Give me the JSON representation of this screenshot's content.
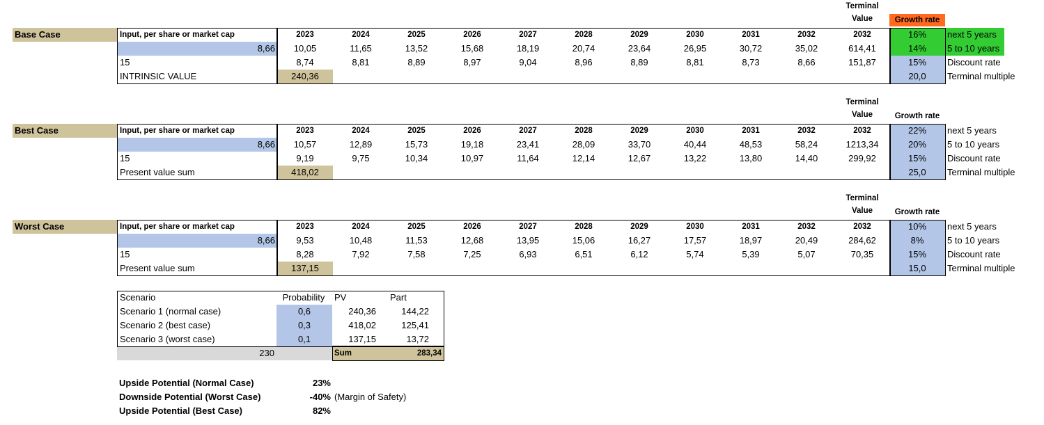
{
  "blocks": [
    {
      "label": "Base Case",
      "header_label": "Input, per share or market cap",
      "years": [
        "2023",
        "2024",
        "2025",
        "2026",
        "2027",
        "2028",
        "2029",
        "2030",
        "2031",
        "2032",
        "2032"
      ],
      "terminal_line1": "Terminal",
      "terminal_line2": "Value",
      "growth_header": "Growth rate",
      "input_value": "8,66",
      "fcf": [
        "10,05",
        "11,65",
        "13,52",
        "15,68",
        "18,19",
        "20,74",
        "23,64",
        "26,95",
        "30,72",
        "35,02",
        "614,41"
      ],
      "discount_label": "15",
      "pv": [
        "8,74",
        "8,81",
        "8,89",
        "8,97",
        "9,04",
        "8,96",
        "8,89",
        "8,81",
        "8,73",
        "8,66",
        "151,87"
      ],
      "sum_label": "INTRINSIC VALUE",
      "sum_value": "240,36",
      "params": [
        {
          "value": "16%",
          "label": "next 5 years"
        },
        {
          "value": "14%",
          "label": "5 to 10 years"
        },
        {
          "value": "15%",
          "label": "Discount rate"
        },
        {
          "value": "20,0",
          "label": "Terminal multiple"
        }
      ]
    },
    {
      "label": "Best Case",
      "header_label": "Input, per share or market cap",
      "years": [
        "2023",
        "2024",
        "2025",
        "2026",
        "2027",
        "2028",
        "2029",
        "2030",
        "2031",
        "2032",
        "2032"
      ],
      "terminal_line1": "Terminal",
      "terminal_line2": "Value",
      "growth_header": "Growth rate",
      "input_value": "8,66",
      "fcf": [
        "10,57",
        "12,89",
        "15,73",
        "19,18",
        "23,41",
        "28,09",
        "33,70",
        "40,44",
        "48,53",
        "58,24",
        "1213,34"
      ],
      "discount_label": "15",
      "pv": [
        "9,19",
        "9,75",
        "10,34",
        "10,97",
        "11,64",
        "12,14",
        "12,67",
        "13,22",
        "13,80",
        "14,40",
        "299,92"
      ],
      "sum_label": "Present value sum",
      "sum_value": "418,02",
      "params": [
        {
          "value": "22%",
          "label": "next 5 years"
        },
        {
          "value": "20%",
          "label": "5 to 10 years"
        },
        {
          "value": "15%",
          "label": "Discount rate"
        },
        {
          "value": "25,0",
          "label": "Terminal multiple"
        }
      ]
    },
    {
      "label": "Worst Case",
      "header_label": "Input, per share or market cap",
      "years": [
        "2023",
        "2024",
        "2025",
        "2026",
        "2027",
        "2028",
        "2029",
        "2030",
        "2031",
        "2032",
        "2032"
      ],
      "terminal_line1": "Terminal",
      "terminal_line2": "Value",
      "growth_header": "Growth rate",
      "input_value": "8,66",
      "fcf": [
        "9,53",
        "10,48",
        "11,53",
        "12,68",
        "13,95",
        "15,06",
        "16,27",
        "17,57",
        "18,97",
        "20,49",
        "284,62"
      ],
      "discount_label": "15",
      "pv": [
        "8,28",
        "7,92",
        "7,58",
        "7,25",
        "6,93",
        "6,51",
        "6,12",
        "5,74",
        "5,39",
        "5,07",
        "70,35"
      ],
      "sum_label": "Present value sum",
      "sum_value": "137,15",
      "params": [
        {
          "value": "10%",
          "label": "next 5 years"
        },
        {
          "value": "8%",
          "label": "5 to 10 years"
        },
        {
          "value": "15%",
          "label": "Discount rate"
        },
        {
          "value": "15,0",
          "label": "Terminal multiple"
        }
      ]
    }
  ],
  "scenarios": {
    "headers": {
      "scenario": "Scenario",
      "probability": "Probability",
      "pv": "PV",
      "part": "Part"
    },
    "rows": [
      {
        "name": "Scenario 1 (normal case)",
        "probability": "0,6",
        "pv": "240,36",
        "part": "144,22"
      },
      {
        "name": "Scenario 2 (best case)",
        "probability": "0,3",
        "pv": "418,02",
        "part": "125,41"
      },
      {
        "name": "Scenario 3 (worst case)",
        "probability": "0,1",
        "pv": "137,15",
        "part": "13,72"
      }
    ],
    "price": "230",
    "sum_label": "Sum",
    "sum_value": "283,34"
  },
  "potentials": [
    {
      "label": "Upside Potential (Normal Case)",
      "value": "23%",
      "note": ""
    },
    {
      "label": "Downside Potential (Worst Case)",
      "value": "-40%",
      "note": "(Margin of Safety)"
    },
    {
      "label": "Upside Potential (Best Case)",
      "value": "82%",
      "note": ""
    }
  ],
  "colors": {
    "tan": "#cfc39b",
    "blue": "#b4c6e7",
    "green": "#33cc33",
    "orange": "#ff6a1f",
    "gray": "#d9d9d9"
  }
}
